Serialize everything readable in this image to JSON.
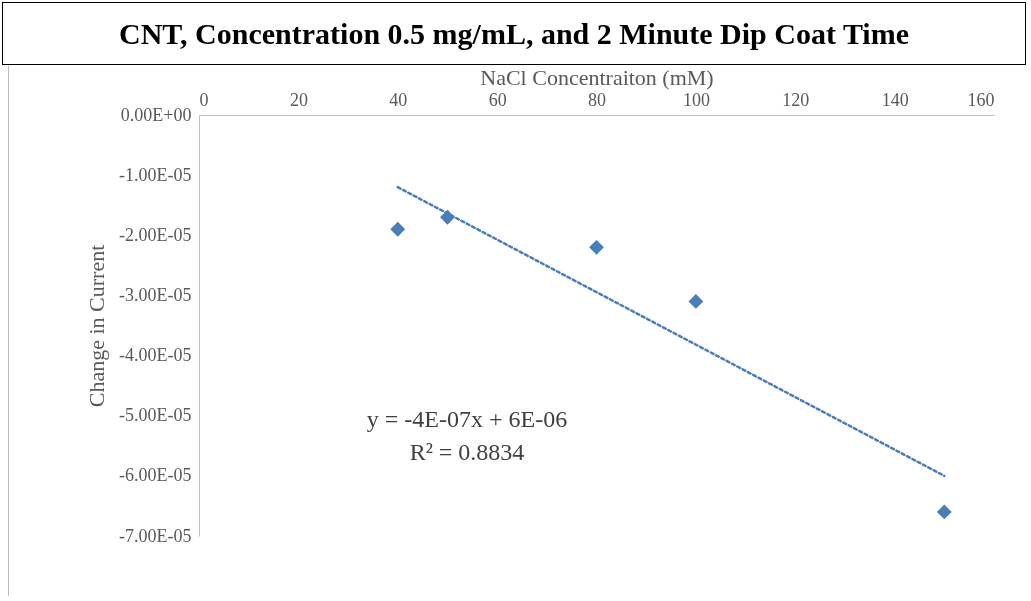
{
  "chart_data": {
    "type": "scatter",
    "title": "CNT, Concentration 0.5 mg/mL, and 2 Minute Dip Coat Time",
    "xlabel": "NaCl Concentraiton (mM)",
    "ylabel": "Change in Current",
    "series": [
      {
        "color": "#4a7ebb",
        "x": [
          40,
          50,
          80,
          100,
          150
        ],
        "values": [
          -1.9e-05,
          -1.7e-05,
          -2.2e-05,
          -3.1e-05,
          -6.6e-05
        ]
      },
      {
        "type": "line",
        "color": "#4a7ebb",
        "line_style": "dotted",
        "marker": "none",
        "x": [
          40,
          150
        ],
        "values": [
          -1.2e-05,
          -6e-05
        ]
      }
    ],
    "marker": "diamond",
    "xlim": [
      0,
      160
    ],
    "xticks": [
      0,
      20,
      40,
      60,
      80,
      100,
      120,
      140,
      160
    ],
    "ylim": [
      -7e-05,
      0
    ],
    "yticks": [
      {
        "value": 0,
        "label": "0.00E+00"
      },
      {
        "value": -1e-05,
        "label": "-1.00E-05"
      },
      {
        "value": -2e-05,
        "label": "-2.00E-05"
      },
      {
        "value": -3e-05,
        "label": "-3.00E-05"
      },
      {
        "value": -4e-05,
        "label": "-4.00E-05"
      },
      {
        "value": -5e-05,
        "label": "-5.00E-05"
      },
      {
        "value": -6e-05,
        "label": "-6.00E-05"
      },
      {
        "value": -7e-05,
        "label": "-7.00E-05"
      }
    ],
    "grid": false,
    "annotations": [
      "y = -4E-07x + 6E-06",
      "R² = 0.8834"
    ]
  }
}
